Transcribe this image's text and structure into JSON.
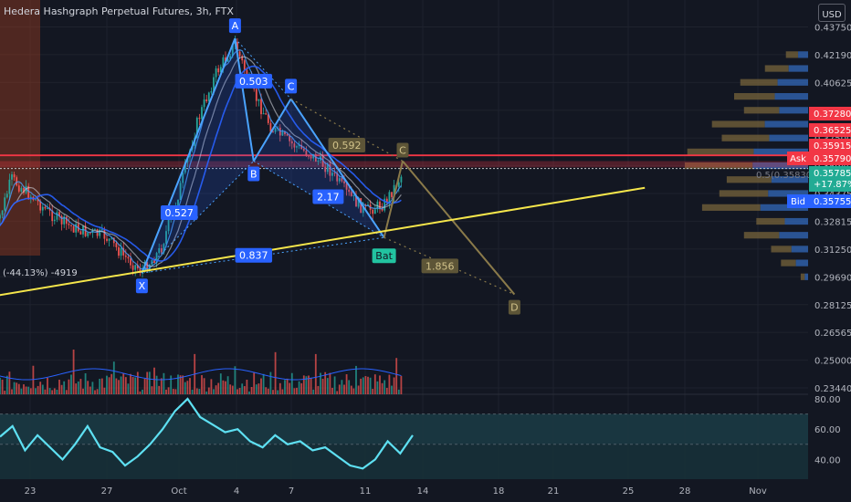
{
  "chart_data": [
    {
      "type": "candlestick",
      "title": "Hedera Hashgraph Perpetual Futures, 3h, FTX",
      "currency": "USD",
      "price_axis": {
        "ticks": [
          "0.43750",
          "0.42190",
          "0.40625",
          "0.39060",
          "0.37500",
          "0.35940",
          "0.34375",
          "0.32815",
          "0.31250",
          "0.29690",
          "0.28125",
          "0.26565",
          "0.25000",
          "0.23440"
        ],
        "range": [
          0.2344,
          0.4475
        ]
      },
      "time_axis": {
        "ticks": [
          "23",
          "27",
          "Oct",
          "4",
          "7",
          "11",
          "14",
          "18",
          "21",
          "25",
          "28",
          "Nov"
        ]
      },
      "price_path": [
        {
          "date": "2021-09-21",
          "price": 0.318
        },
        {
          "date": "2021-09-22",
          "price": 0.352
        },
        {
          "date": "2021-09-23",
          "price": 0.343
        },
        {
          "date": "2021-09-24",
          "price": 0.333
        },
        {
          "date": "2021-09-25",
          "price": 0.326
        },
        {
          "date": "2021-09-26",
          "price": 0.322
        },
        {
          "date": "2021-09-27",
          "price": 0.32
        },
        {
          "date": "2021-09-28",
          "price": 0.309
        },
        {
          "date": "2021-09-29",
          "price": 0.3
        },
        {
          "date": "2021-09-30",
          "price": 0.312
        },
        {
          "date": "2021-10-01",
          "price": 0.345
        },
        {
          "date": "2021-10-02",
          "price": 0.385
        },
        {
          "date": "2021-10-03",
          "price": 0.412
        },
        {
          "date": "2021-10-04",
          "price": 0.428
        },
        {
          "date": "2021-10-05",
          "price": 0.4
        },
        {
          "date": "2021-10-06",
          "price": 0.38
        },
        {
          "date": "2021-10-07",
          "price": 0.372
        },
        {
          "date": "2021-10-08",
          "price": 0.366
        },
        {
          "date": "2021-10-09",
          "price": 0.358
        },
        {
          "date": "2021-10-10",
          "price": 0.344
        },
        {
          "date": "2021-10-11",
          "price": 0.334
        },
        {
          "date": "2021-10-12",
          "price": 0.338
        },
        {
          "date": "2021-10-13",
          "price": 0.355
        }
      ],
      "bat_pattern": [
        {
          "point": "X",
          "date": "2021-09-29",
          "price": 0.299
        },
        {
          "point": "A",
          "date": "2021-10-04",
          "price": 0.431
        },
        {
          "point": "B",
          "date": "2021-10-05",
          "price": 0.362
        },
        {
          "point": "C",
          "date": "2021-10-07",
          "price": 0.397
        },
        {
          "point": "D",
          "date": "2021-10-12",
          "price": 0.319
        }
      ],
      "projection": [
        {
          "point": "A",
          "date": "2021-10-07",
          "price": 0.397
        },
        {
          "point": "B",
          "date": "2021-10-12",
          "price": 0.319
        },
        {
          "point": "C",
          "date": "2021-10-13",
          "price": 0.362
        },
        {
          "point": "D",
          "date": "2021-10-19",
          "price": 0.287
        }
      ],
      "ratio_labels": [
        {
          "text": "0.503",
          "date": "2021-10-05",
          "price": 0.407
        },
        {
          "text": "0.527",
          "date": "2021-10-01",
          "price": 0.333
        },
        {
          "text": "2.17",
          "date": "2021-10-09",
          "price": 0.342
        },
        {
          "text": "0.837",
          "date": "2021-10-05",
          "price": 0.309
        },
        {
          "text": "0.592",
          "date": "2021-10-10",
          "price": 0.371
        },
        {
          "text": "1.856",
          "date": "2021-10-15",
          "price": 0.303
        }
      ],
      "pattern_name": "Bat",
      "trendline": {
        "start": {
          "date": "2021-09-21",
          "price": 0.286
        },
        "end": {
          "date": "2021-10-26",
          "price": 0.347
        }
      },
      "resistance_line": 0.36525,
      "zone": {
        "top": 0.362,
        "bottom": 0.3585
      },
      "price_labels": [
        {
          "text": "0.37280",
          "color": "#f23645"
        },
        {
          "text": "0.36525",
          "color": "#f23645"
        },
        {
          "text": "0.35915",
          "color": "#f23645"
        },
        {
          "text": "0.35790",
          "color": "#f23645",
          "tag": "Ask"
        },
        {
          "text": "0.35785",
          "color": "#22ab94",
          "extra": "+17.87%"
        },
        {
          "text": "0.35755",
          "color": "#2962ff",
          "tag": "Bid"
        }
      ],
      "fib_label": "0.5(0.35830)",
      "position_label": "(-44.13%) -4919",
      "volume_profile": [
        {
          "price": 0.4219,
          "volume": 0.18
        },
        {
          "price": 0.4141,
          "volume": 0.35
        },
        {
          "price": 0.4063,
          "volume": 0.55
        },
        {
          "price": 0.3984,
          "volume": 0.6
        },
        {
          "price": 0.3906,
          "volume": 0.52
        },
        {
          "price": 0.3828,
          "volume": 0.78
        },
        {
          "price": 0.375,
          "volume": 0.7
        },
        {
          "price": 0.3672,
          "volume": 0.98
        },
        {
          "price": 0.3594,
          "volume": 1.0
        },
        {
          "price": 0.3516,
          "volume": 0.66
        },
        {
          "price": 0.3438,
          "volume": 0.72
        },
        {
          "price": 0.3359,
          "volume": 0.86
        },
        {
          "price": 0.3281,
          "volume": 0.42
        },
        {
          "price": 0.3203,
          "volume": 0.52
        },
        {
          "price": 0.3125,
          "volume": 0.3
        },
        {
          "price": 0.3047,
          "volume": 0.22
        },
        {
          "price": 0.2969,
          "volume": 0.06
        }
      ]
    },
    {
      "type": "line",
      "title": "RSI",
      "yticks": [
        "80.00",
        "60.00",
        "40.00"
      ],
      "ylim": [
        30,
        80
      ],
      "bands": [
        70,
        50
      ],
      "values": [
        55,
        62,
        46,
        56,
        48,
        40,
        50,
        62,
        48,
        45,
        36,
        42,
        50,
        60,
        72,
        80,
        68,
        63,
        58,
        60,
        52,
        48,
        56,
        50,
        52,
        46,
        48,
        42,
        36,
        34,
        40,
        52,
        44,
        56
      ]
    }
  ]
}
